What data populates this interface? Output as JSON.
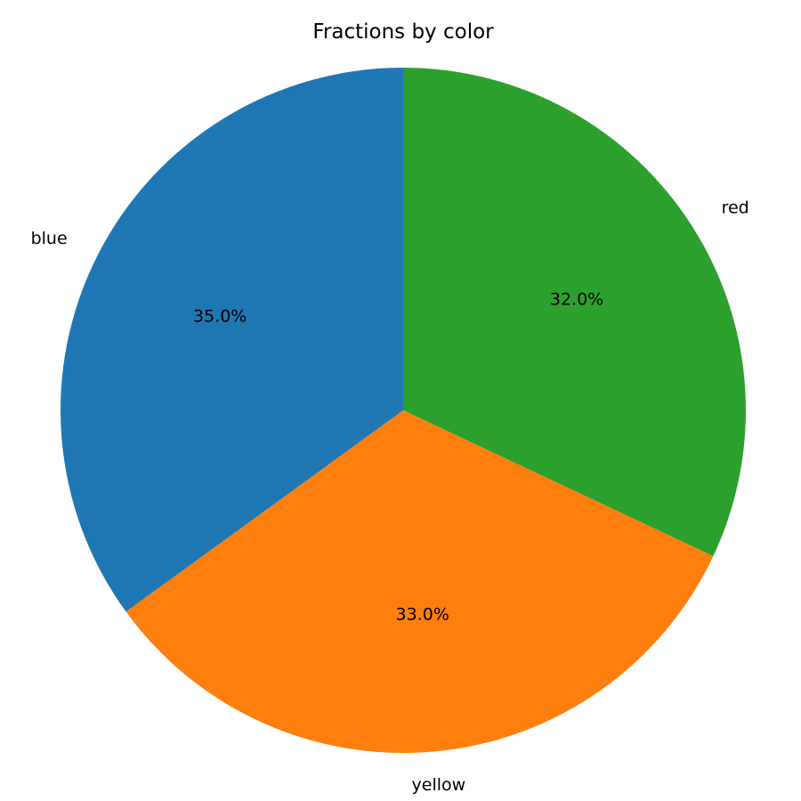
{
  "chart_data": {
    "type": "pie",
    "title": "Fractions by color",
    "slices": [
      {
        "label": "red",
        "value": 32.0,
        "pct_label": "32.0%",
        "color": "#2ca02c"
      },
      {
        "label": "yellow",
        "value": 33.0,
        "pct_label": "33.0%",
        "color": "#ff7f0e"
      },
      {
        "label": "blue",
        "value": 35.0,
        "pct_label": "35.0%",
        "color": "#1f77b4"
      }
    ],
    "start_angle_deg": 90,
    "direction": "clockwise",
    "legend": "none"
  }
}
